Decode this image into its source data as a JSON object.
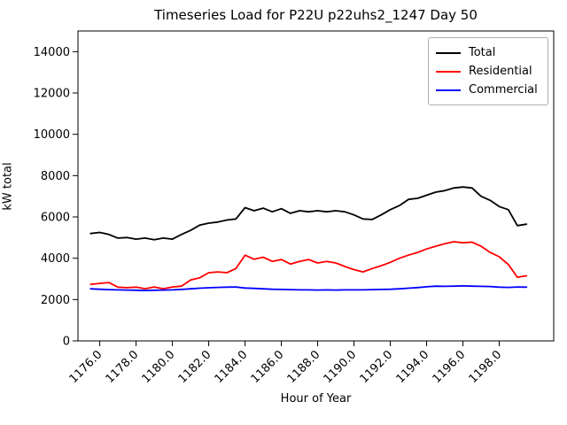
{
  "figure": {
    "title": "Timeseries Load for P22U p22uhs2_1247  Day 50",
    "xlabel": "Hour of Year",
    "ylabel": "kW total"
  },
  "chart_data": {
    "type": "line",
    "title": "Timeseries Load for P22U p22uhs2_1247  Day 50",
    "xlabel": "Hour of Year",
    "ylabel": "kW total",
    "xlim": [
      1174.8,
      1201.0
    ],
    "ylim": [
      0,
      15000
    ],
    "xticks": [
      1176.0,
      1178.0,
      1180.0,
      1182.0,
      1184.0,
      1186.0,
      1188.0,
      1190.0,
      1192.0,
      1194.0,
      1196.0,
      1198.0
    ],
    "xtick_labels": [
      "1176.0",
      "1178.0",
      "1180.0",
      "1182.0",
      "1184.0",
      "1186.0",
      "1188.0",
      "1190.0",
      "1192.0",
      "1194.0",
      "1196.0",
      "1198.0"
    ],
    "yticks": [
      0,
      2000,
      4000,
      6000,
      8000,
      10000,
      12000,
      14000
    ],
    "ytick_labels": [
      "0",
      "2000",
      "4000",
      "6000",
      "8000",
      "10000",
      "12000",
      "14000"
    ],
    "grid": false,
    "legend_position": "upper right",
    "x": [
      1175.5,
      1176.0,
      1176.5,
      1177.0,
      1177.5,
      1178.0,
      1178.5,
      1179.0,
      1179.5,
      1180.0,
      1180.5,
      1181.0,
      1181.5,
      1182.0,
      1182.5,
      1183.0,
      1183.5,
      1184.0,
      1184.5,
      1185.0,
      1185.5,
      1186.0,
      1186.5,
      1187.0,
      1187.5,
      1188.0,
      1188.5,
      1189.0,
      1189.5,
      1190.0,
      1190.5,
      1191.0,
      1191.5,
      1192.0,
      1192.5,
      1193.0,
      1193.5,
      1194.0,
      1194.5,
      1195.0,
      1195.5,
      1196.0,
      1196.5,
      1197.0,
      1197.5,
      1198.0,
      1198.5,
      1199.0,
      1199.5
    ],
    "series": [
      {
        "name": "Total",
        "color": "#000000",
        "values": [
          5200,
          5250,
          5150,
          4975,
          5000,
          4925,
          4975,
          4900,
          4975,
          4925,
          5150,
          5350,
          5600,
          5700,
          5750,
          5850,
          5900,
          6450,
          6300,
          6425,
          6250,
          6400,
          6175,
          6300,
          6250,
          6300,
          6250,
          6300,
          6250,
          6100,
          5900,
          5875,
          6100,
          6350,
          6550,
          6850,
          6900,
          7050,
          7200,
          7275,
          7400,
          7450,
          7400,
          7000,
          6800,
          6500,
          6350,
          5580,
          5650
        ]
      },
      {
        "name": "Residential",
        "color": "#ff0000",
        "values": [
          2740,
          2780,
          2825,
          2600,
          2575,
          2600,
          2525,
          2610,
          2525,
          2610,
          2650,
          2950,
          3050,
          3300,
          3340,
          3300,
          3500,
          4150,
          3950,
          4050,
          3850,
          3940,
          3720,
          3850,
          3940,
          3770,
          3850,
          3770,
          3600,
          3450,
          3340,
          3500,
          3640,
          3800,
          4000,
          4150,
          4280,
          4450,
          4580,
          4700,
          4800,
          4750,
          4780,
          4580,
          4280,
          4070,
          3700,
          3080,
          3150
        ]
      },
      {
        "name": "Commercial",
        "color": "#0000ff",
        "values": [
          2520,
          2500,
          2480,
          2470,
          2460,
          2450,
          2440,
          2450,
          2460,
          2470,
          2490,
          2520,
          2550,
          2570,
          2590,
          2600,
          2610,
          2560,
          2540,
          2520,
          2500,
          2490,
          2480,
          2470,
          2470,
          2460,
          2470,
          2460,
          2470,
          2470,
          2470,
          2480,
          2490,
          2500,
          2520,
          2550,
          2580,
          2620,
          2650,
          2640,
          2650,
          2660,
          2650,
          2640,
          2630,
          2600,
          2590,
          2610,
          2600
        ]
      }
    ]
  }
}
